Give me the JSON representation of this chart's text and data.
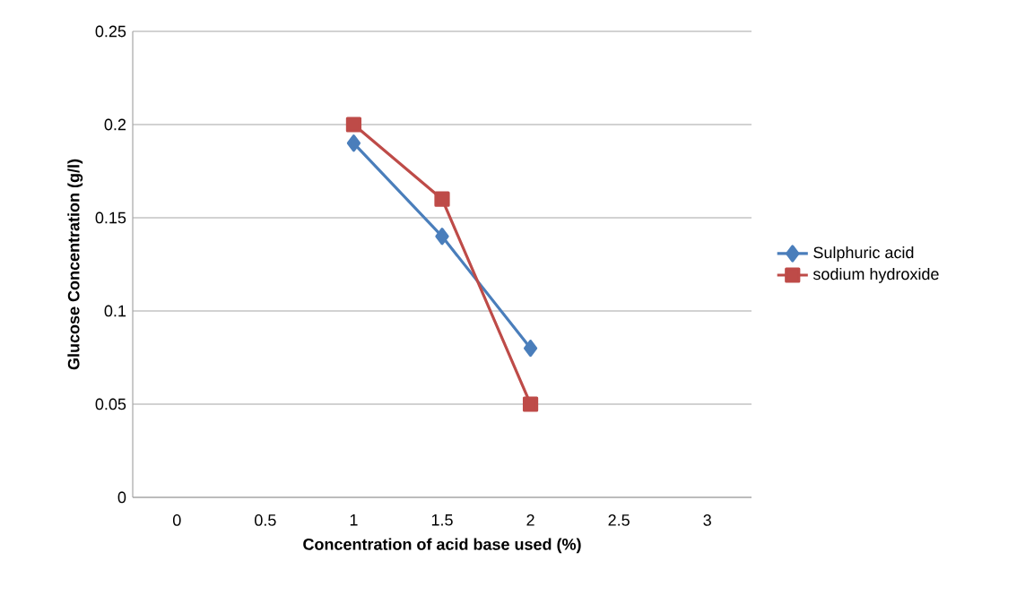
{
  "chart_data": {
    "type": "line",
    "xlabel": "Concentration of acid base used (%)",
    "ylabel": "Glucose Concentration (g/l)",
    "categories": [
      "0",
      "0.5",
      "1",
      "1.5",
      "2",
      "2.5",
      "3"
    ],
    "series": [
      {
        "name": "Sulphuric acid",
        "color": "#4a7ebb",
        "marker": "diamond",
        "values": [
          null,
          null,
          0.19,
          0.14,
          0.08,
          null,
          null
        ]
      },
      {
        "name": "sodium hydroxide",
        "color": "#be4b48",
        "marker": "square",
        "values": [
          null,
          null,
          0.2,
          0.16,
          0.05,
          null,
          null
        ]
      }
    ],
    "ylim": [
      0,
      0.25
    ],
    "yticks": [
      0,
      0.05,
      0.1,
      0.15,
      0.2,
      0.25
    ],
    "grid": "y",
    "legend": "right",
    "line_style": "solid"
  }
}
